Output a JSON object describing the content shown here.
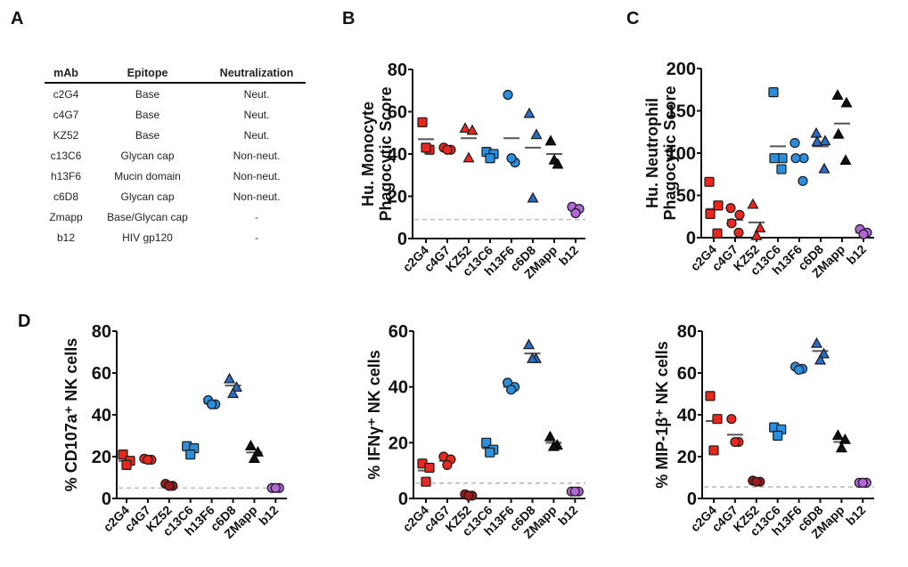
{
  "panels": {
    "A": "A",
    "B": "B",
    "C": "C",
    "D": "D"
  },
  "table": {
    "headers": [
      "mAb",
      "Epitope",
      "Neutralization"
    ],
    "rows": [
      [
        "c2G4",
        "Base",
        "Neut."
      ],
      [
        "c4G7",
        "Base",
        "Neut."
      ],
      [
        "KZ52",
        "Base",
        "Neut."
      ],
      [
        "c13C6",
        "Glycan cap",
        "Non-neut."
      ],
      [
        "h13F6",
        "Mucin domain",
        "Non-neut."
      ],
      [
        "c6D8",
        "Glycan cap",
        "Non-neut."
      ],
      [
        "Zmapp",
        "Base/Glycan cap",
        "-"
      ],
      [
        "b12",
        "HIV gp120",
        "-"
      ]
    ]
  },
  "colors": {
    "red": "#e8281e",
    "dark_red": "#9b1a1a",
    "blue": "#2b8fe0",
    "dark_blue": "#2b6cc4",
    "black": "#111111",
    "purple": "#b266d6",
    "mean_line": "#555555",
    "baseline": "#bbbbbb"
  },
  "chart_data": [
    {
      "id": "B",
      "type": "scatter",
      "ylabel": [
        "Hu. Monocyte",
        "Phagocytic Score"
      ],
      "ylim": [
        0,
        80
      ],
      "yticks": [
        0,
        20,
        40,
        60,
        80
      ],
      "categories": [
        "c2G4",
        "c4G7",
        "KZ52",
        "c13C6",
        "h13F6",
        "c6D8",
        "ZMapp",
        "b12"
      ],
      "baseline": 9,
      "series": [
        {
          "name": "c2G4",
          "marker": "square",
          "color": "red",
          "values": [
            55,
            42,
            43
          ],
          "mean": 47
        },
        {
          "name": "c4G7",
          "marker": "circle",
          "color": "red",
          "values": [
            43,
            42,
            42
          ],
          "mean": 42.5
        },
        {
          "name": "KZ52",
          "marker": "triangle",
          "color": "red",
          "values": [
            52,
            51,
            38
          ],
          "mean": 47.5
        },
        {
          "name": "c13C6",
          "marker": "square",
          "color": "blue",
          "values": [
            41,
            40,
            38
          ],
          "mean": 40
        },
        {
          "name": "h13F6",
          "marker": "circle",
          "color": "blue",
          "values": [
            68,
            36,
            38
          ],
          "mean": 47.5
        },
        {
          "name": "c6D8",
          "marker": "triangle",
          "color": "dark_blue",
          "values": [
            59,
            49,
            19
          ],
          "mean": 43
        },
        {
          "name": "ZMapp",
          "marker": "triangle",
          "color": "black",
          "values": [
            46,
            35,
            37
          ],
          "mean": 40
        },
        {
          "name": "b12",
          "marker": "circle",
          "color": "purple",
          "values": [
            15,
            14,
            12
          ],
          "mean": 14
        }
      ]
    },
    {
      "id": "C",
      "type": "scatter",
      "ylabel": [
        "Hu. Neutrophil",
        "Phagocytic Score"
      ],
      "ylim": [
        0,
        200
      ],
      "yticks": [
        0,
        50,
        100,
        150,
        200
      ],
      "categories": [
        "c2G4",
        "c4G7",
        "KZ52",
        "c13C6",
        "h13F6",
        "c6D8",
        "ZMapp",
        "b12"
      ],
      "baseline": 0,
      "series": [
        {
          "name": "c2G4",
          "marker": "square",
          "color": "red",
          "values": [
            66,
            38,
            28,
            5
          ],
          "mean": 34
        },
        {
          "name": "c4G7",
          "marker": "circle",
          "color": "red",
          "values": [
            35,
            27,
            17,
            6
          ],
          "mean": 21
        },
        {
          "name": "KZ52",
          "marker": "triangle",
          "color": "red",
          "values": [
            39,
            11,
            2
          ],
          "mean": 18
        },
        {
          "name": "c13C6",
          "marker": "square",
          "color": "blue",
          "values": [
            172,
            94,
            94,
            81
          ],
          "mean": 108
        },
        {
          "name": "h13F6",
          "marker": "circle",
          "color": "blue",
          "values": [
            112,
            94,
            94,
            67
          ],
          "mean": 94
        },
        {
          "name": "c6D8",
          "marker": "triangle",
          "color": "dark_blue",
          "values": [
            123,
            114,
            113,
            81
          ],
          "mean": 108
        },
        {
          "name": "ZMapp",
          "marker": "triangle",
          "color": "black",
          "values": [
            168,
            159,
            122,
            91
          ],
          "mean": 135
        },
        {
          "name": "b12",
          "marker": "circle",
          "color": "purple",
          "values": [
            10,
            6,
            4
          ],
          "mean": 6
        }
      ]
    },
    {
      "id": "D1",
      "type": "scatter",
      "ylabel": [
        "% CD107a⁺ NK cells"
      ],
      "ylim": [
        0,
        80
      ],
      "yticks": [
        0,
        20,
        40,
        60,
        80
      ],
      "categories": [
        "c2G4",
        "c4G7",
        "KZ52",
        "c13C6",
        "h13F6",
        "c6D8",
        "ZMapp",
        "b12"
      ],
      "baseline": 5,
      "series": [
        {
          "name": "c2G4",
          "marker": "square",
          "color": "red",
          "values": [
            21,
            18,
            16
          ],
          "mean": 18
        },
        {
          "name": "c4G7",
          "marker": "circle",
          "color": "red",
          "values": [
            19,
            18.5,
            18.5
          ],
          "mean": 18.5
        },
        {
          "name": "KZ52",
          "marker": "circle",
          "color": "dark_red",
          "values": [
            7,
            6,
            6
          ],
          "mean": 6
        },
        {
          "name": "c13C6",
          "marker": "square",
          "color": "blue",
          "values": [
            25,
            24,
            21
          ],
          "mean": 23.5
        },
        {
          "name": "h13F6",
          "marker": "circle",
          "color": "blue",
          "values": [
            47,
            45,
            45
          ],
          "mean": 45.5
        },
        {
          "name": "c6D8",
          "marker": "triangle",
          "color": "dark_blue",
          "values": [
            57,
            53,
            50
          ],
          "mean": 54
        },
        {
          "name": "ZMapp",
          "marker": "triangle",
          "color": "black",
          "values": [
            25,
            22,
            19
          ],
          "mean": 22
        },
        {
          "name": "b12",
          "marker": "circle",
          "color": "purple",
          "values": [
            5,
            5,
            5
          ],
          "mean": 5
        }
      ]
    },
    {
      "id": "D2",
      "type": "scatter",
      "ylabel": [
        "% IFNγ⁺ NK cells"
      ],
      "ylim": [
        0,
        60
      ],
      "yticks": [
        0,
        20,
        40,
        60
      ],
      "categories": [
        "c2G4",
        "c4G7",
        "KZ52",
        "c13C6",
        "h13F6",
        "c6D8",
        "ZMapp",
        "b12"
      ],
      "baseline": 5.5,
      "series": [
        {
          "name": "c2G4",
          "marker": "square",
          "color": "red",
          "values": [
            12.5,
            11,
            6
          ],
          "mean": 10
        },
        {
          "name": "c4G7",
          "marker": "circle",
          "color": "red",
          "values": [
            15,
            14,
            12
          ],
          "mean": 13.5
        },
        {
          "name": "KZ52",
          "marker": "circle",
          "color": "dark_red",
          "values": [
            1.5,
            1,
            1
          ],
          "mean": 1
        },
        {
          "name": "c13C6",
          "marker": "square",
          "color": "blue",
          "values": [
            20,
            17.5,
            16.5
          ],
          "mean": 18
        },
        {
          "name": "h13F6",
          "marker": "circle",
          "color": "blue",
          "values": [
            41.5,
            40,
            39
          ],
          "mean": 40
        },
        {
          "name": "c6D8",
          "marker": "triangle",
          "color": "dark_blue",
          "values": [
            55,
            50,
            50
          ],
          "mean": 52
        },
        {
          "name": "ZMapp",
          "marker": "triangle",
          "color": "black",
          "values": [
            22,
            19,
            18.5
          ],
          "mean": 20
        },
        {
          "name": "b12",
          "marker": "circle",
          "color": "purple",
          "values": [
            2.5,
            2.5,
            2.5
          ],
          "mean": 2.5
        }
      ]
    },
    {
      "id": "D3",
      "type": "scatter",
      "ylabel": [
        "% MIP-1β⁺ NK cells"
      ],
      "ylim": [
        0,
        80
      ],
      "yticks": [
        0,
        20,
        40,
        60,
        80
      ],
      "categories": [
        "c2G4",
        "c4G7",
        "KZ52",
        "c13C6",
        "h13F6",
        "c6D8",
        "ZMapp",
        "b12"
      ],
      "baseline": 5.5,
      "series": [
        {
          "name": "c2G4",
          "marker": "square",
          "color": "red",
          "values": [
            49,
            38,
            23
          ],
          "mean": 37
        },
        {
          "name": "c4G7",
          "marker": "circle",
          "color": "red",
          "values": [
            38,
            27,
            27
          ],
          "mean": 30.5
        },
        {
          "name": "KZ52",
          "marker": "circle",
          "color": "dark_red",
          "values": [
            8.5,
            8,
            8
          ],
          "mean": 8
        },
        {
          "name": "c13C6",
          "marker": "square",
          "color": "blue",
          "values": [
            34,
            33,
            30
          ],
          "mean": 32.5
        },
        {
          "name": "h13F6",
          "marker": "circle",
          "color": "blue",
          "values": [
            63,
            62,
            61.5
          ],
          "mean": 62
        },
        {
          "name": "c6D8",
          "marker": "triangle",
          "color": "dark_blue",
          "values": [
            74,
            69,
            66
          ],
          "mean": 70.5
        },
        {
          "name": "ZMapp",
          "marker": "triangle",
          "color": "black",
          "values": [
            30,
            28,
            24
          ],
          "mean": 27
        },
        {
          "name": "b12",
          "marker": "circle",
          "color": "purple",
          "values": [
            7.5,
            7.5,
            7.5
          ],
          "mean": 7.5
        }
      ]
    }
  ]
}
